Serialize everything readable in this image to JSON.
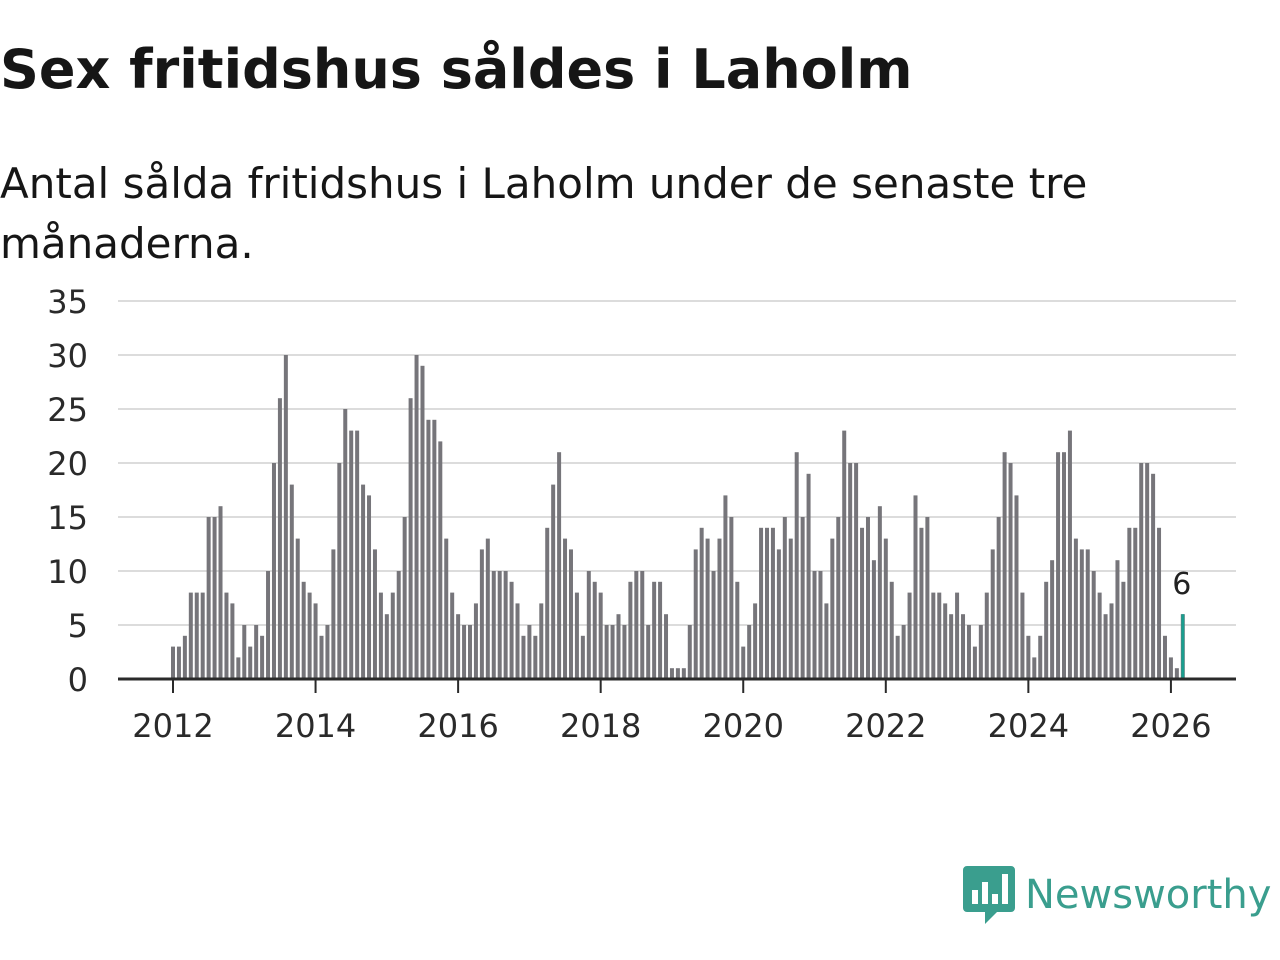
{
  "title": "Sex fritidshus såldes i Laholm",
  "subtitle": "Antal sålda fritidshus i Laholm under de senaste tre månaderna.",
  "brand": {
    "name": "Newsworthy",
    "icon": "newsworthy-logo-icon"
  },
  "colors": {
    "bar": "#76757a",
    "highlight": "#1a9e8f",
    "grid": "#dcdcdc",
    "brand": "#3a9e8e"
  },
  "chart_data": {
    "type": "bar",
    "title": "Sex fritidshus såldes i Laholm",
    "xlabel": "",
    "ylabel": "",
    "ylim": [
      0,
      35
    ],
    "yticks": [
      0,
      5,
      10,
      15,
      20,
      25,
      30,
      35
    ],
    "xticks": [
      {
        "label": "2012",
        "index": 0
      },
      {
        "label": "2014",
        "index": 24
      },
      {
        "label": "2016",
        "index": 48
      },
      {
        "label": "2018",
        "index": 72
      },
      {
        "label": "2020",
        "index": 96
      },
      {
        "label": "2022",
        "index": 120
      },
      {
        "label": "2024",
        "index": 144
      },
      {
        "label": "2026",
        "index": 168
      }
    ],
    "start": "2012-01",
    "frequency": "monthly",
    "values": [
      3,
      3,
      4,
      8,
      8,
      8,
      15,
      15,
      16,
      8,
      7,
      2,
      5,
      3,
      5,
      4,
      10,
      20,
      26,
      30,
      18,
      13,
      9,
      8,
      7,
      4,
      5,
      12,
      20,
      25,
      23,
      23,
      18,
      17,
      12,
      8,
      6,
      8,
      10,
      15,
      26,
      30,
      29,
      24,
      24,
      22,
      13,
      8,
      6,
      5,
      5,
      7,
      12,
      13,
      10,
      10,
      10,
      9,
      7,
      4,
      5,
      4,
      7,
      14,
      18,
      21,
      13,
      12,
      8,
      4,
      10,
      9,
      8,
      5,
      5,
      6,
      5,
      9,
      10,
      10,
      5,
      9,
      9,
      6,
      1,
      1,
      1,
      5,
      12,
      14,
      13,
      10,
      13,
      17,
      15,
      9,
      3,
      5,
      7,
      14,
      14,
      14,
      12,
      15,
      13,
      21,
      15,
      19,
      10,
      10,
      7,
      13,
      15,
      23,
      20,
      20,
      14,
      15,
      11,
      16,
      13,
      9,
      4,
      5,
      8,
      17,
      14,
      15,
      8,
      8,
      7,
      6,
      8,
      6,
      5,
      3,
      5,
      8,
      12,
      15,
      21,
      20,
      17,
      8,
      4,
      2,
      4,
      9,
      11,
      21,
      21,
      23,
      13,
      12,
      12,
      10,
      8,
      6,
      7,
      11,
      9,
      14,
      14,
      20,
      20,
      19,
      14,
      4,
      2,
      1,
      6
    ],
    "highlight": {
      "index": 170,
      "value": 6,
      "label": "6"
    }
  }
}
